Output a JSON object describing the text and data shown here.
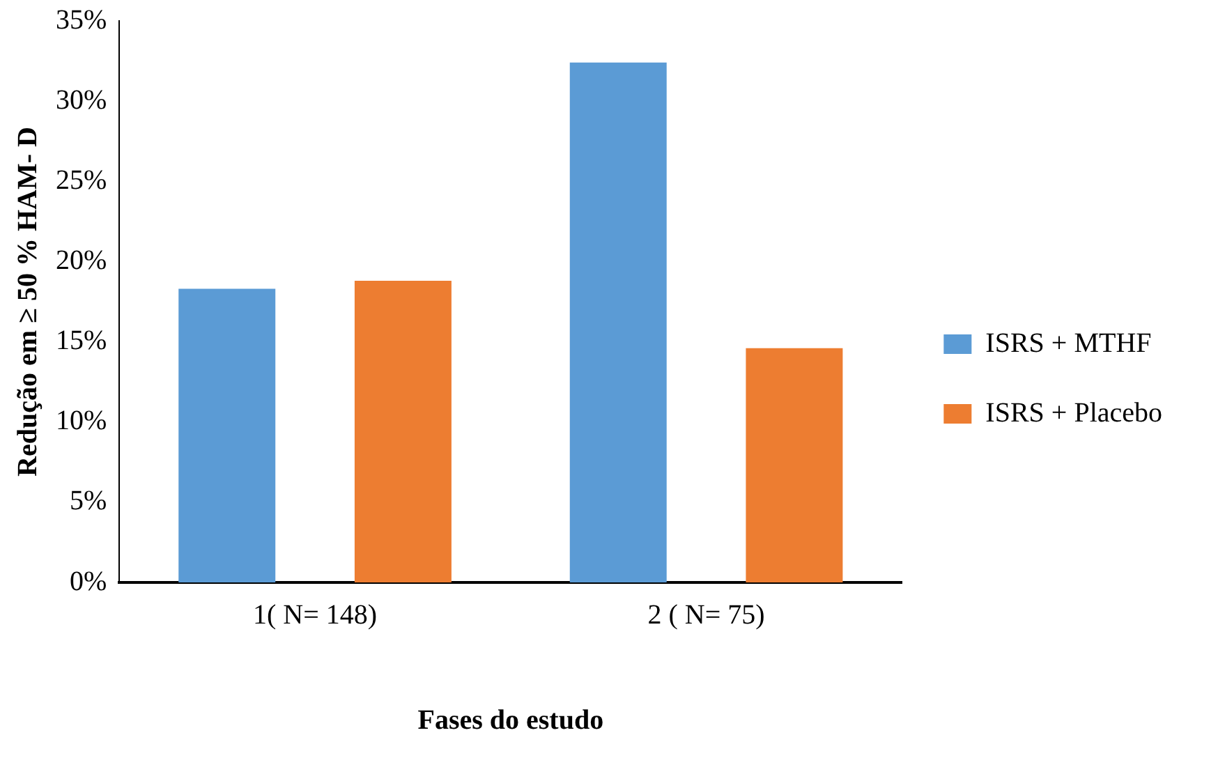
{
  "chart_data": {
    "type": "bar",
    "xlabel": "Fases do estudo",
    "ylabel": "Redução em ≥ 50 % HAM- D",
    "categories": [
      "1( N= 148)",
      "2 ( N= 75)"
    ],
    "series": [
      {
        "name": "ISRS + MTHF",
        "color": "#5b9bd5",
        "values": [
          18.3,
          32.4
        ]
      },
      {
        "name": "ISRS + Placebo",
        "color": "#ed7d31",
        "values": [
          18.8,
          14.6
        ]
      }
    ],
    "ylim": [
      0,
      35
    ],
    "yticks": [
      {
        "value": 0,
        "label": "0%"
      },
      {
        "value": 5,
        "label": "5%"
      },
      {
        "value": 10,
        "label": "10%"
      },
      {
        "value": 15,
        "label": "15%"
      },
      {
        "value": 20,
        "label": "20%"
      },
      {
        "value": 25,
        "label": "25%"
      },
      {
        "value": 30,
        "label": "30%"
      },
      {
        "value": 35,
        "label": "35%"
      }
    ],
    "grid": false,
    "legend": "right"
  }
}
